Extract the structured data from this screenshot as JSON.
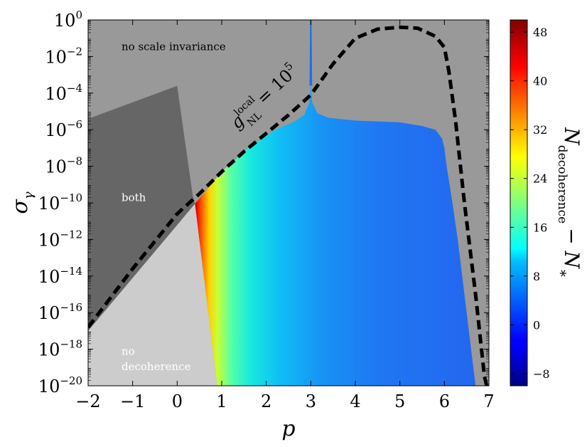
{
  "chart_data": {
    "type": "heatmap",
    "title": "",
    "xlabel": "p",
    "ylabel": "σ",
    "ylabel_sub": "γ",
    "xlim": [
      -2,
      7
    ],
    "ylim_log10": [
      -20,
      0
    ],
    "y_scale": "log",
    "x_ticks": [
      -2,
      -1,
      0,
      1,
      2,
      3,
      4,
      5,
      6,
      7
    ],
    "x_tick_labels": [
      "−2",
      "−1",
      "0",
      "1",
      "2",
      "3",
      "4",
      "5",
      "6",
      "7"
    ],
    "y_ticks_log10": [
      0,
      -2,
      -4,
      -6,
      -8,
      -10,
      -12,
      -14,
      -16,
      -18,
      -20
    ],
    "y_tick_labels": [
      {
        "base": "10",
        "exp": "0"
      },
      {
        "base": "10",
        "exp": "−2"
      },
      {
        "base": "10",
        "exp": "−4"
      },
      {
        "base": "10",
        "exp": "−6"
      },
      {
        "base": "10",
        "exp": "−8"
      },
      {
        "base": "10",
        "exp": "−10"
      },
      {
        "base": "10",
        "exp": "−12"
      },
      {
        "base": "10",
        "exp": "−14"
      },
      {
        "base": "10",
        "exp": "−16"
      },
      {
        "base": "10",
        "exp": "−18"
      },
      {
        "base": "10",
        "exp": "−20"
      }
    ],
    "regions": [
      {
        "label": "no scale invariance",
        "color": "#999999"
      },
      {
        "label": "both",
        "color": "#666666"
      },
      {
        "label_lines": [
          "no",
          "decoherence"
        ],
        "color": "#cccccc"
      }
    ],
    "region_label_points": [
      {
        "p": -1.25,
        "log_sigma": -1.65
      },
      {
        "p": -1.25,
        "log_sigma": -9.9
      },
      {
        "p": -1.25,
        "log_sigma": -18.3
      },
      {
        "p": -1.25,
        "log_sigma": -19.15
      }
    ],
    "no_scale_boundary": [
      [
        -2,
        -5.4
      ],
      [
        0,
        -3.6
      ],
      [
        0.35,
        -9.6
      ],
      [
        0.4,
        -10.05
      ]
    ],
    "decoherence_boundary": {
      "upper": [
        [
          0.4,
          -10.05
        ],
        [
          1.0,
          -8.3
        ],
        [
          1.6,
          -7.0
        ],
        [
          2.2,
          -6.0
        ],
        [
          2.6,
          -5.6
        ],
        [
          2.85,
          -5.2
        ],
        [
          2.97,
          -4.5
        ],
        [
          3.0,
          -3.6
        ],
        [
          3.03,
          -4.5
        ],
        [
          3.15,
          -5.1
        ],
        [
          3.4,
          -5.35
        ],
        [
          4.0,
          -5.5
        ],
        [
          4.5,
          -5.55
        ],
        [
          5.0,
          -5.6
        ],
        [
          5.5,
          -5.8
        ],
        [
          5.8,
          -6.0
        ],
        [
          5.95,
          -6.5
        ],
        [
          6.0,
          -7.0
        ],
        [
          6.05,
          -8.0
        ],
        [
          6.15,
          -9.5
        ],
        [
          6.3,
          -12.0
        ],
        [
          6.45,
          -15.0
        ],
        [
          6.6,
          -18.0
        ],
        [
          6.7,
          -20.0
        ]
      ],
      "lower": [
        [
          0.9,
          -20.0
        ],
        [
          0.4,
          -10.05
        ]
      ]
    },
    "spike": {
      "p": 3.0,
      "from_log_sigma": -3.6,
      "to_log_sigma": 0
    },
    "gnl_contour": {
      "label": "g",
      "label_sub": "NL",
      "label_sup": "local",
      "label_rhs": "= 10",
      "label_rhs_exp": "5",
      "label_anchor": {
        "p": 1.35,
        "log_sigma": -6.0
      },
      "label_angle_deg": -43,
      "points": [
        [
          -2,
          -16.8
        ],
        [
          -1,
          -13.6
        ],
        [
          0,
          -10.6
        ],
        [
          0.5,
          -9.5
        ],
        [
          1,
          -8.3
        ],
        [
          1.5,
          -7.2
        ],
        [
          2,
          -6.2
        ],
        [
          2.5,
          -5.2
        ],
        [
          3,
          -4.1
        ],
        [
          3.5,
          -2.4
        ],
        [
          4,
          -1.0
        ],
        [
          4.5,
          -0.5
        ],
        [
          5,
          -0.4
        ],
        [
          5.4,
          -0.45
        ],
        [
          5.8,
          -0.9
        ],
        [
          6.0,
          -1.5
        ],
        [
          6.1,
          -2.8
        ],
        [
          6.25,
          -5.5
        ],
        [
          6.45,
          -10.0
        ],
        [
          6.7,
          -15.0
        ],
        [
          6.9,
          -19.5
        ],
        [
          6.95,
          -20.0
        ]
      ]
    },
    "colorbar": {
      "label": "N",
      "label_sub_1": "decoherence",
      "label_mid": "− N",
      "label_sub_2": "∗",
      "min": -10,
      "max": 50,
      "ticks": [
        -8,
        0,
        8,
        16,
        24,
        32,
        40,
        48
      ],
      "tick_labels": [
        "−8",
        "0",
        "8",
        "16",
        "24",
        "32",
        "40",
        "48"
      ]
    },
    "grid": false
  }
}
